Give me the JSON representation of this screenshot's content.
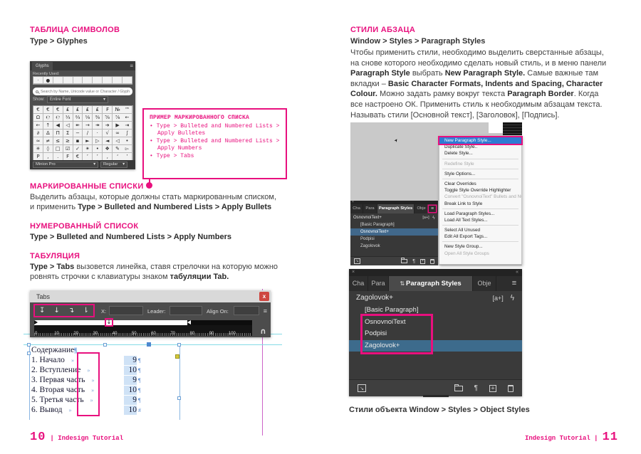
{
  "colors": {
    "accent": "#e8107e",
    "menu_highlight": "#2e7ad3",
    "selected_row": "#3d6b8c"
  },
  "left": {
    "glyphs_section": {
      "title": "ТАБЛИЦА СИМВОЛОВ",
      "subtitle": "Type > Glyphes"
    },
    "glyphs_panel": {
      "tab": "Glyphs",
      "menu_icon": "≡",
      "chevron": "▾",
      "recently_used_label": "Recently Used:",
      "recent": [
        "·",
        "●",
        "",
        "",
        "",
        "",
        "",
        "",
        "",
        ""
      ],
      "search_placeholder": "Search by Name, Unicode value or Character / Glyph ID",
      "show_label": "Show:",
      "show_value": "Entire Font",
      "glyphs": [
        "€",
        "€",
        "€",
        "₤",
        "₤",
        "₤",
        "₤",
        "₣",
        "№",
        "™",
        "Ω",
        "℮",
        "℮",
        "⅓",
        "⅔",
        "⅛",
        "⅜",
        "⅝",
        "⅞",
        "←",
        "←",
        "↑",
        "◀",
        "◁",
        "↞",
        "→",
        "↠",
        "➔",
        "▶",
        "⇥",
        "∂",
        "Δ",
        "Π",
        "Σ",
        "−",
        "∕",
        "·",
        "√",
        "∞",
        "∫",
        "≈",
        "≠",
        "≤",
        "≥",
        "▪",
        "►",
        "▷",
        "◄",
        "◁",
        "•",
        "✳",
        "◊",
        "□",
        "☑",
        "✓",
        "✴",
        "•",
        "❖",
        "✎",
        "▻",
        "P",
        ",",
        ".",
        "F",
        "€",
        "’",
        "’",
        "‚",
        "‘",
        "’"
      ],
      "font_name": "Minion Pro",
      "font_style": "Regular"
    },
    "callout": {
      "title": "ПРИМЕР МАРКИРОВАННОГО СПИСКА",
      "items": [
        "Type > Bulleted and Numbered Lists > Apply Bulletes",
        "Type > Bulleted and Numbered Lists > Apply Numbers",
        "Type > Tabs"
      ]
    },
    "bullets_section": {
      "title": "МАРКИРОВАННЫЕ СПИСКИ",
      "line1": [
        {
          "t": "Выделить абзацы, которые должны стать маркированным списком,"
        }
      ],
      "line2": [
        {
          "t": "и применить "
        },
        {
          "t": "Type > Bulleted and Numbered Lists > Apply Bullets",
          "c": "b"
        }
      ]
    },
    "numbers_section": {
      "title": "НУМЕРОВАННЫЙ СПИСОК",
      "body": [
        {
          "t": "Type > Bulleted and Numbered Lists > Apply Numbers",
          "c": "b"
        }
      ]
    },
    "tabs_section": {
      "title": "ТАБУЛЯЦИЯ",
      "line1": [
        {
          "t": "Type > Tabs",
          "c": "b"
        },
        {
          "t": " вызовется линейка, ставя стрелочки на которую можно"
        }
      ],
      "line2": [
        {
          "t": "ровнять строчки с клавиатуры знаком "
        },
        {
          "t": "табуляции Tab.",
          "c": "b"
        }
      ]
    },
    "tabs_window": {
      "title": "Tabs",
      "close": "x",
      "menu_icon": "≡",
      "magnet_icon": "∩",
      "tab_buttons": [
        "↧",
        "↓",
        "↴",
        "⇂"
      ],
      "tab_marker": "↓",
      "x_label": "X:",
      "leader_label": "Leader:",
      "align_label": "Align On:",
      "ruler": [
        "0",
        "10",
        "20",
        "30",
        "40",
        "50",
        "60",
        "70",
        "80",
        "90",
        "100",
        "110"
      ]
    },
    "document": {
      "heading": "Содержание",
      "heading_mark": "¶",
      "rows": [
        {
          "name": "1. Начало",
          "tab": "»",
          "page": "9",
          "mark": "¶"
        },
        {
          "name": "2. Вступление",
          "tab": "»",
          "page": "10",
          "mark": "¶"
        },
        {
          "name": "3. Первая часть",
          "tab": "»",
          "page": "9",
          "mark": "¶"
        },
        {
          "name": "4. Вторая часть",
          "tab": "»",
          "page": "10",
          "mark": "¶"
        },
        {
          "name": "5. Третья часть",
          "tab": "»",
          "page": "9",
          "mark": "¶"
        },
        {
          "name": "6. Вывод",
          "tab": "»",
          "page": "10",
          "mark": "#"
        }
      ]
    },
    "footer": {
      "page": "10",
      "label": "| Indesign Tutorial"
    }
  },
  "right": {
    "section": {
      "title": "СТИЛИ АБЗАЦА",
      "subtitle": "Window > Styles > Paragraph Styles"
    },
    "para": {
      "l1": [
        {
          "t": "Чтобы применить стили, необходимо выделить сверстанные абзацы,"
        }
      ],
      "l2": [
        {
          "t": "на снове которого необходимо сделать новый стиль, и в меню панели"
        }
      ],
      "l3": [
        {
          "t": "Paragraph Style",
          "c": "b"
        },
        {
          "t": " выбрать "
        },
        {
          "t": "New Paragraph Style.",
          "c": "b"
        },
        {
          "t": " Самые важные там"
        }
      ],
      "l4": [
        {
          "t": "вкладки – "
        },
        {
          "t": "Basic Character Formats, Indents and Spacing, Character",
          "c": "b"
        }
      ],
      "l5": [
        {
          "t": "Colour.",
          "c": "b"
        },
        {
          "t": " Можно задать рамку вокруг текста "
        },
        {
          "t": "Paragraph Border",
          "c": "b"
        },
        {
          "t": ". Когда"
        }
      ],
      "l6": [
        {
          "t": "все настроено ОК. Применить стиль к необходимым абзацам текста."
        }
      ],
      "l7": [
        {
          "t": "Называть стили [Основной текст], [Заголовок], [Подпись]."
        }
      ]
    },
    "menu": {
      "items": [
        {
          "label": "New Paragraph Style...",
          "state": "highlighted"
        },
        {
          "label": "Duplicate Style..",
          "state": ""
        },
        {
          "label": "Delete Style...",
          "state": ""
        },
        {
          "label": "",
          "state": "sep"
        },
        {
          "label": "Redefine Style",
          "state": "disabled"
        },
        {
          "label": "",
          "state": "sep"
        },
        {
          "label": "Style Options...",
          "state": ""
        },
        {
          "label": "",
          "state": "sep"
        },
        {
          "label": "Clear Overrides",
          "state": ""
        },
        {
          "label": "Toggle Style Override Highlighter",
          "state": ""
        },
        {
          "label": "Convert \"OsnovnoiText\" Bullets and Numb",
          "state": "disabled"
        },
        {
          "label": "Break Link to Style",
          "state": ""
        },
        {
          "label": "",
          "state": "sep"
        },
        {
          "label": "Load Paragraph Styles...",
          "state": ""
        },
        {
          "label": "Load All Text Styles...",
          "state": ""
        },
        {
          "label": "",
          "state": "sep"
        },
        {
          "label": "Select All Unused",
          "state": ""
        },
        {
          "label": "Edit All Export Tags...",
          "state": ""
        },
        {
          "label": "",
          "state": "sep"
        },
        {
          "label": "New Style Group...",
          "state": ""
        },
        {
          "label": "Open All Style Groups",
          "state": "disabled"
        }
      ]
    },
    "panel_small": {
      "close": "×",
      "menu_icon": "≡",
      "tabs": [
        "Cha",
        "Para",
        "Paragraph Styles",
        "Obje"
      ],
      "current": "OsnovnoiText+",
      "badge": "[a+]",
      "bolt": "ϟ",
      "styles": [
        {
          "label": "[Basic Paragraph]",
          "state": ""
        },
        {
          "label": "OsnovnoiText+",
          "state": "selected"
        },
        {
          "label": "Podpisi",
          "state": ""
        },
        {
          "label": "Zagolovok",
          "state": ""
        }
      ]
    },
    "panel_large": {
      "close": "×",
      "collapse": "«",
      "menu_icon": "≡",
      "tab_icon": "⇅",
      "tabs": [
        "Cha",
        "Para",
        "Paragraph Styles",
        "Obje"
      ],
      "current": "Zagolovok+",
      "badge": "[a+]",
      "bolt": "ϟ",
      "styles": [
        {
          "label": "[Basic Paragraph]",
          "state": ""
        },
        {
          "label": "OsnovnoiText",
          "state": ""
        },
        {
          "label": "Podpisi",
          "state": ""
        },
        {
          "label": "Zagolovok+",
          "state": "selected"
        }
      ]
    },
    "caption": "Стили объекта Window > Styles > Object Styles",
    "footer": {
      "label": "Indesign Tutorial |",
      "page": "11"
    }
  }
}
